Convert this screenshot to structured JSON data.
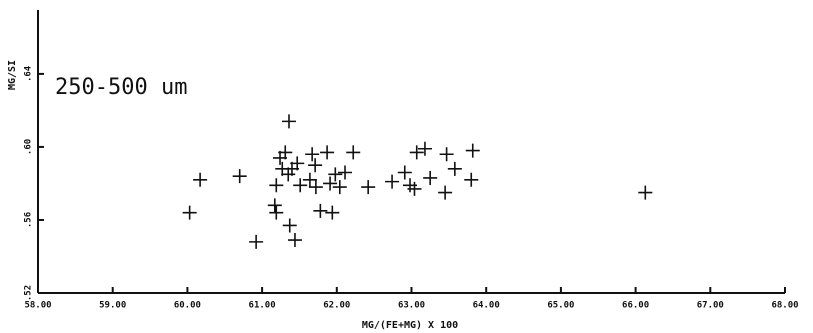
{
  "chart_data": {
    "type": "scatter",
    "annotation": "250-500 um",
    "x_label": "MG/(FE+MG) X 100",
    "y_label": "MG/SI",
    "color": "#111111",
    "grid": false,
    "xlim": [
      58,
      68
    ],
    "ylim": [
      0.52,
      0.675
    ],
    "xticks": [
      {
        "value": 58,
        "label": "58.00"
      },
      {
        "value": 59,
        "label": "59.00"
      },
      {
        "value": 60,
        "label": "60.00"
      },
      {
        "value": 61,
        "label": "61.00"
      },
      {
        "value": 62,
        "label": "62.00"
      },
      {
        "value": 63,
        "label": "63.00"
      },
      {
        "value": 64,
        "label": "64.00"
      },
      {
        "value": 65,
        "label": "65.00"
      },
      {
        "value": 66,
        "label": "66.00"
      },
      {
        "value": 67,
        "label": "67.00"
      },
      {
        "value": 68,
        "label": "68.00"
      }
    ],
    "yticks": [
      {
        "value": 0.52,
        "label": ".52"
      },
      {
        "value": 0.56,
        "label": ".56"
      },
      {
        "value": 0.6,
        "label": ".60"
      },
      {
        "value": 0.64,
        "label": ".64"
      }
    ],
    "x": [
      60.03,
      60.17,
      60.7,
      60.92,
      61.17,
      61.19,
      61.19,
      61.24,
      61.27,
      61.31,
      61.36,
      61.35,
      61.37,
      61.44,
      61.4,
      61.47,
      61.51,
      61.64,
      61.67,
      61.71,
      61.72,
      61.78,
      61.87,
      61.91,
      61.94,
      61.98,
      62.04,
      62.11,
      62.22,
      62.42,
      62.74,
      62.91,
      62.98,
      63.04,
      63.07,
      63.18,
      63.25,
      63.45,
      63.47,
      63.58,
      63.8,
      63.82,
      66.13
    ],
    "values": [
      0.564,
      0.582,
      0.584,
      0.548,
      0.568,
      0.564,
      0.579,
      0.594,
      0.588,
      0.597,
      0.614,
      0.585,
      0.557,
      0.549,
      0.588,
      0.591,
      0.579,
      0.582,
      0.596,
      0.59,
      0.578,
      0.565,
      0.597,
      0.58,
      0.564,
      0.585,
      0.578,
      0.586,
      0.597,
      0.578,
      0.581,
      0.586,
      0.579,
      0.577,
      0.597,
      0.599,
      0.583,
      0.575,
      0.596,
      0.588,
      0.582,
      0.598,
      0.575
    ]
  }
}
